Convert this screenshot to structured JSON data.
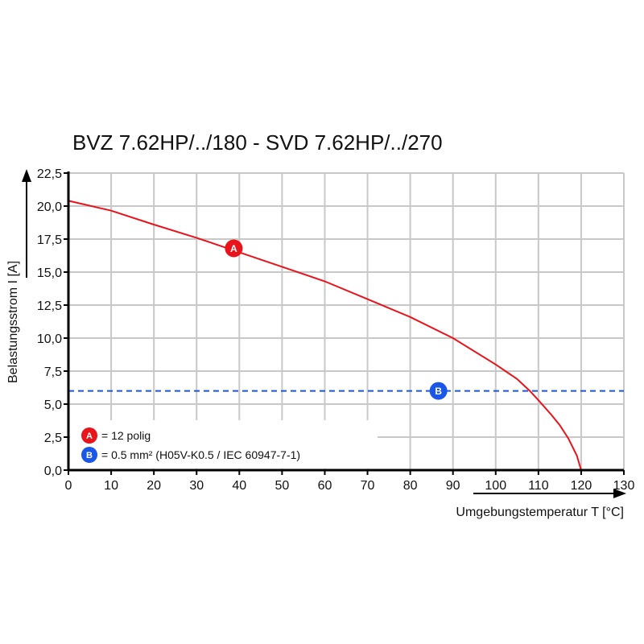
{
  "chart_data": {
    "type": "line",
    "title": "BVZ 7.62HP/../180 - SVD 7.62HP/../270",
    "xlabel": "Umgebungstemperatur T [°C]",
    "ylabel": "Belastungsstrom I [A]",
    "xlim": [
      0,
      130
    ],
    "ylim": [
      0,
      22.5
    ],
    "x_ticks": [
      "0",
      "10",
      "20",
      "30",
      "40",
      "50",
      "60",
      "70",
      "80",
      "90",
      "100",
      "110",
      "120",
      "130"
    ],
    "y_ticks": [
      "0,0",
      "2,5",
      "5,0",
      "7,5",
      "10,0",
      "12,5",
      "15,0",
      "17,5",
      "20,0",
      "22,5"
    ],
    "grid": true,
    "legend_position": "bottom-left",
    "series": [
      {
        "marker": "A",
        "name": "= 12 polig",
        "color": "#e8131b",
        "style": "solid",
        "marker_at": [
          38.7,
          16.8
        ],
        "x": [
          0,
          10,
          20,
          30,
          40,
          50,
          60,
          70,
          80,
          90,
          100,
          105,
          108,
          110,
          113,
          115,
          117,
          119,
          120
        ],
        "y": [
          20.4,
          19.65,
          18.6,
          17.6,
          16.5,
          15.4,
          14.3,
          12.95,
          11.6,
          10.0,
          8.0,
          6.9,
          6.0,
          5.3,
          4.2,
          3.4,
          2.4,
          1.1,
          0
        ]
      },
      {
        "marker": "B",
        "name": "= 0.5 mm² (H05V-K0.5 / IEC 60947-7-1)",
        "color": "#1a56e8",
        "style": "dashed",
        "marker_at": [
          86.6,
          6.0
        ],
        "x": [
          0,
          130
        ],
        "y": [
          6.0,
          6.0
        ]
      }
    ]
  }
}
